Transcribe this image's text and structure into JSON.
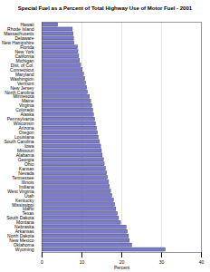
{
  "chart_data": {
    "type": "bar",
    "title": "Special Fuel as a Percent of Total Highway Use of Motor Fuel - 2001",
    "orientation": "horizontal",
    "x_label": "Percent",
    "categories": [
      "Hawaii",
      "Rhode Island",
      "Massachusetts",
      "Delaware",
      "New Hampshire",
      "Florida",
      "New York",
      "California",
      "Michigan",
      "Dist. of Col.",
      "Connecticut",
      "Maryland",
      "Washington",
      "Vermont",
      "New Jersey",
      "North Carolina",
      "Minnesota",
      "Maine",
      "Virginia",
      "Colorado",
      "Alaska",
      "Pennsylvania",
      "Wisconsin",
      "Arizona",
      "Oregon",
      "Louisiana",
      "South Carolina",
      "Iowa",
      "Missouri",
      "Alabama",
      "Georgia",
      "Ohio",
      "Kansas",
      "Nevada",
      "Tennessee",
      "Illinois",
      "Indiana",
      "West Virginia",
      "Utah",
      "Kentucky",
      "Mississippi",
      "Idaho",
      "Texas",
      "South Dakota",
      "Montana",
      "Nebraska",
      "Arkansas",
      "North Dakota",
      "New Mexico",
      "Oklahoma",
      "Wyoming"
    ],
    "values": [
      4.0,
      7.7,
      7.9,
      8.0,
      8.1,
      9.0,
      9.1,
      9.3,
      9.5,
      9.8,
      10.2,
      10.5,
      10.8,
      11.0,
      11.3,
      11.5,
      12.0,
      12.3,
      12.6,
      12.8,
      13.0,
      13.3,
      13.5,
      13.8,
      14.0,
      14.2,
      14.5,
      14.8,
      15.0,
      15.2,
      15.5,
      15.7,
      16.0,
      16.3,
      16.5,
      16.8,
      17.0,
      17.3,
      17.6,
      18.0,
      18.3,
      18.6,
      19.0,
      19.3,
      19.8,
      21.2,
      21.5,
      21.8,
      22.0,
      22.6,
      31.0
    ],
    "color": "#7b7bd6",
    "xlim": [
      0,
      40
    ],
    "xticks": [
      0,
      10,
      20,
      30,
      40
    ],
    "grid": true
  }
}
